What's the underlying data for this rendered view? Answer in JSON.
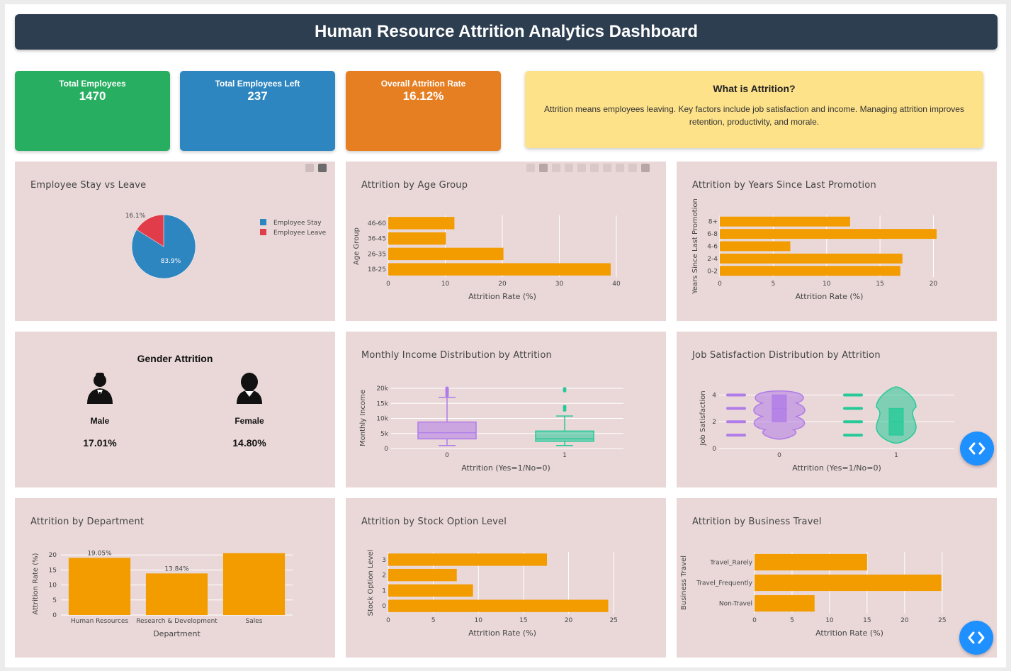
{
  "header": {
    "title": "Human Resource Attrition Analytics Dashboard"
  },
  "kpis": [
    {
      "label": "Total Employees",
      "value": "1470",
      "color": "#27ae60"
    },
    {
      "label": "Total Employees Left",
      "value": "237",
      "color": "#2e86c1"
    },
    {
      "label": "Overall Attrition Rate",
      "value": "16.12%",
      "color": "#e67e22"
    }
  ],
  "info": {
    "title": "What is Attrition?",
    "text": "Attrition means employees leaving. Key factors include job satisfaction and income. Managing attrition improves retention, productivity, and morale."
  },
  "gender": {
    "title": "Gender Attrition",
    "male": {
      "label": "Male",
      "value": "17.01%",
      "icon": "male-person-icon"
    },
    "female": {
      "label": "Female",
      "value": "14.80%",
      "icon": "female-person-icon"
    }
  },
  "panel_titles": {
    "stay_leave": "Employee Stay vs Leave",
    "age_group": "Attrition by Age Group",
    "promotion": "Attrition by Years Since Last Promotion",
    "income": "Monthly Income Distribution by Attrition",
    "satisfaction": "Job Satisfaction Distribution by Attrition",
    "department": "Attrition by Department",
    "stock": "Attrition by Stock Option Level",
    "travel": "Attrition by Business Travel"
  },
  "colors": {
    "bar": "#f29c00",
    "stay": "#2e86c1",
    "leave": "#e03c4a",
    "purple": "#b07ce8",
    "green": "#27c998",
    "panel": "#ead8d8",
    "nav": "#1e90ff"
  },
  "nav_icon": "code-brackets-icon",
  "chart_data": [
    {
      "id": "stay_leave",
      "type": "pie",
      "labels": [
        "Employee Stay",
        "Employee Leave"
      ],
      "values": [
        83.9,
        16.1
      ],
      "data_labels": [
        "83.9%",
        "16.1%"
      ],
      "legend": "right"
    },
    {
      "id": "age_group",
      "type": "bar",
      "orientation": "h",
      "categories": [
        "18-25",
        "26-35",
        "36-45",
        "46-60"
      ],
      "values": [
        39,
        20.2,
        10.1,
        11.6
      ],
      "xlabel": "Attrition Rate (%)",
      "ylabel": "Age Group",
      "xlim": [
        0,
        40
      ],
      "xticks": [
        0,
        10,
        20,
        30,
        40
      ],
      "grid": true
    },
    {
      "id": "promotion",
      "type": "bar",
      "orientation": "h",
      "categories": [
        "0-2",
        "2-4",
        "4-6",
        "6-8",
        "8+"
      ],
      "values": [
        16.9,
        17.1,
        6.6,
        20.3,
        12.2
      ],
      "xlabel": "Attrition Rate (%)",
      "ylabel": "Years Since Last Promotion",
      "xlim": [
        0,
        20.5
      ],
      "xticks": [
        0,
        5,
        10,
        15,
        20
      ],
      "grid": true
    },
    {
      "id": "income",
      "type": "box",
      "categories": [
        "0",
        "1"
      ],
      "series": [
        {
          "name": "0",
          "min": 1000,
          "q1": 3200,
          "median": 5200,
          "q3": 8800,
          "max": 17000,
          "outliers": [
            17500,
            18200,
            18800,
            19200,
            19500,
            19800,
            20000
          ]
        },
        {
          "name": "1",
          "min": 1000,
          "q1": 2400,
          "median": 3200,
          "q3": 5800,
          "max": 10800,
          "outliers": [
            12800,
            13500,
            13900,
            19200,
            19800
          ]
        }
      ],
      "xlabel": "Attrition (Yes=1/No=0)",
      "ylabel": "Monthly Income",
      "ylim": [
        0,
        20000
      ],
      "ytick_labels": [
        "0",
        "5k",
        "10k",
        "15k",
        "20k"
      ],
      "grid": true
    },
    {
      "id": "satisfaction",
      "type": "violin",
      "categories": [
        "0",
        "1"
      ],
      "series": [
        {
          "name": "0",
          "q1": 2,
          "median": 3,
          "q3": 4,
          "points": [
            1,
            2,
            3,
            4
          ]
        },
        {
          "name": "1",
          "q1": 1,
          "median": 2,
          "q3": 3,
          "points": [
            1,
            2,
            3,
            4
          ]
        }
      ],
      "xlabel": "Attrition (Yes=1/No=0)",
      "ylabel": "Job Satisfaction",
      "ylim": [
        0,
        4.5
      ],
      "yticks": [
        0,
        2,
        4
      ],
      "grid": true
    },
    {
      "id": "department",
      "type": "bar",
      "categories": [
        "Human Resources",
        "Research & Development",
        "Sales"
      ],
      "values": [
        19.05,
        13.84,
        20.6
      ],
      "data_labels": [
        "19.05%",
        "13.84%",
        ""
      ],
      "xlabel": "Department",
      "ylabel": "Attrition Rate (%)",
      "ylim": [
        0,
        21
      ],
      "yticks": [
        0,
        5,
        10,
        15,
        20
      ],
      "grid": true
    },
    {
      "id": "stock",
      "type": "bar",
      "orientation": "h",
      "categories": [
        "0",
        "1",
        "2",
        "3"
      ],
      "values": [
        24.4,
        9.4,
        7.6,
        17.6
      ],
      "xlabel": "Attrition Rate (%)",
      "ylabel": "Stock Option Level",
      "xlim": [
        0,
        25.3
      ],
      "xticks": [
        0,
        5,
        10,
        15,
        20,
        25
      ],
      "grid": true
    },
    {
      "id": "travel",
      "type": "bar",
      "orientation": "h",
      "categories": [
        "Non-Travel",
        "Travel_Frequently",
        "Travel_Rarely"
      ],
      "values": [
        8,
        24.9,
        15
      ],
      "xlabel": "Attrition Rate (%)",
      "ylabel": "Business Travel",
      "xlim": [
        0,
        25.3
      ],
      "xticks": [
        0,
        5,
        10,
        15,
        20,
        25
      ],
      "grid": true
    }
  ]
}
